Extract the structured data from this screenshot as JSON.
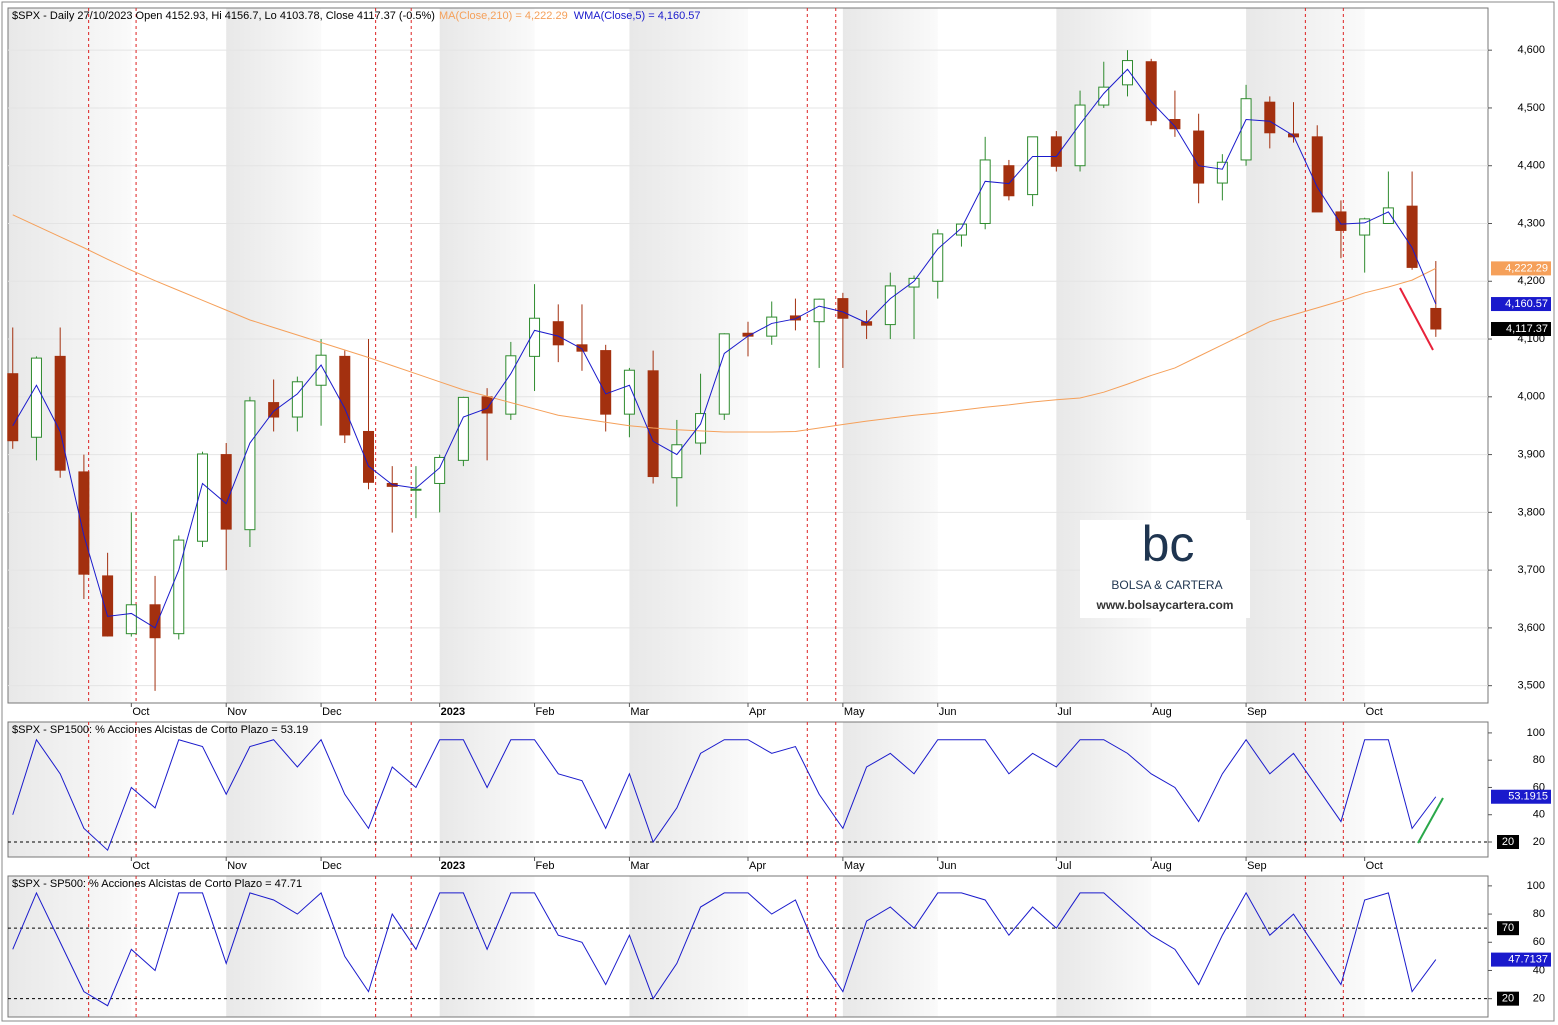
{
  "chart_data": [
    {
      "type": "candlestick",
      "title": "$SPX - Daily 27/10/2023 Open 4152.93, Hi 4156.7, Lo 4103.78, Close 4117.37 (-0.5%)",
      "open": [
        4040,
        3930,
        4070,
        3870,
        3690,
        3590,
        3640,
        3590,
        3750,
        3900,
        3770,
        3990,
        3965,
        4020,
        4070,
        3940,
        3850,
        3840,
        3850,
        3890,
        4000,
        3970,
        4070,
        4130,
        4090,
        4080,
        3970,
        4045,
        3860,
        3920,
        3970,
        4110,
        4105,
        4140,
        4130,
        4170,
        4130,
        4125,
        4190,
        4200,
        4280,
        4300,
        4400,
        4350,
        4450,
        4400,
        4505,
        4540,
        4580,
        4480,
        4460,
        4370,
        4410,
        4510,
        4455,
        4450,
        4320,
        4280,
        4300,
        4330,
        4152.93
      ],
      "high": [
        4120,
        4070,
        4120,
        3900,
        3730,
        3800,
        3690,
        3760,
        3905,
        3920,
        4000,
        4030,
        4035,
        4100,
        4080,
        4100,
        3880,
        3880,
        3900,
        4000,
        4015,
        4095,
        4195,
        4160,
        4160,
        4090,
        4050,
        4080,
        3960,
        4040,
        4110,
        4130,
        4165,
        4170,
        4170,
        4180,
        4150,
        4215,
        4210,
        4290,
        4300,
        4450,
        4410,
        4450,
        4460,
        4530,
        4580,
        4600,
        4585,
        4530,
        4490,
        4420,
        4540,
        4520,
        4510,
        4470,
        4340,
        4310,
        4390,
        4390,
        4235
      ],
      "low": [
        3910,
        3890,
        3860,
        3650,
        3585,
        3585,
        3491,
        3580,
        3740,
        3700,
        3740,
        3940,
        3940,
        3950,
        3920,
        3840,
        3765,
        3790,
        3800,
        3880,
        3890,
        3960,
        4010,
        4060,
        4045,
        3940,
        3930,
        3850,
        3810,
        3900,
        3960,
        4070,
        4090,
        4115,
        4050,
        4050,
        4100,
        4100,
        4100,
        4170,
        4260,
        4290,
        4340,
        4330,
        4390,
        4390,
        4500,
        4520,
        4470,
        4450,
        4335,
        4340,
        4400,
        4430,
        4440,
        4320,
        4240,
        4215,
        4300,
        4220,
        4103.78
      ],
      "close": [
        3924,
        4067,
        3873,
        3693,
        3586,
        3640,
        3583,
        3752,
        3901,
        3771,
        3993,
        3965,
        4026,
        4072,
        3934,
        3852,
        3845,
        3840,
        3895,
        3999,
        3972,
        4071,
        4136,
        4090,
        4079,
        3970,
        4046,
        3862,
        3917,
        3971,
        4109,
        4105,
        4138,
        4133,
        4169,
        4136,
        4124,
        4192,
        4205,
        4282,
        4299,
        4410,
        4348,
        4450,
        4399,
        4505,
        4536,
        4582,
        4478,
        4464,
        4370,
        4406,
        4516,
        4457,
        4450,
        4320,
        4288,
        4308,
        4327,
        4224,
        4117.37
      ],
      "last_close_label": "4,117.37",
      "up_color": "#2e8b2e",
      "down_color": "#a3300f",
      "series": [
        {
          "name": "MA(Close,210) = 4,222.29",
          "color": "#f5a05a",
          "last_label": "4,222.29",
          "values": [
            4315,
            4296,
            4277,
            4258,
            4238,
            4219,
            4201,
            4184,
            4167,
            4150,
            4133,
            4120,
            4107,
            4094,
            4081,
            4068,
            4054,
            4040,
            4026,
            4012,
            4001,
            3990,
            3979,
            3968,
            3962,
            3956,
            3950,
            3946,
            3943,
            3941,
            3939,
            3939,
            3939,
            3940,
            3946,
            3952,
            3958,
            3963,
            3968,
            3972,
            3977,
            3982,
            3986,
            3991,
            3995,
            3998,
            4008,
            4022,
            4037,
            4050,
            4070,
            4090,
            4110,
            4130,
            4142,
            4154,
            4166,
            4180,
            4190,
            4202,
            4222.29
          ]
        },
        {
          "name": "WMA(Close,5) = 4,160.57",
          "color": "#1a1acc",
          "last_label": "4,160.57",
          "values": [
            3950,
            4020,
            3940,
            3760,
            3620,
            3625,
            3600,
            3700,
            3850,
            3815,
            3920,
            3975,
            4005,
            4055,
            3980,
            3880,
            3848,
            3842,
            3877,
            3965,
            3980,
            4040,
            4115,
            4105,
            4083,
            4005,
            4020,
            3923,
            3900,
            3953,
            4075,
            4105,
            4127,
            4135,
            4157,
            4147,
            4128,
            4170,
            4200,
            4256,
            4292,
            4373,
            4369,
            4416,
            4416,
            4472,
            4525,
            4567,
            4511,
            4468,
            4400,
            4394,
            4480,
            4477,
            4452,
            4363,
            4299,
            4301,
            4320,
            4258,
            4160.57
          ]
        }
      ],
      "xlim": [
        -0.2,
        62.2
      ],
      "xticks": [
        {
          "value": 5,
          "label": "Oct"
        },
        {
          "value": 9,
          "label": "Nov"
        },
        {
          "value": 13,
          "label": "Dec"
        },
        {
          "value": 18,
          "label": "2023"
        },
        {
          "value": 22,
          "label": "Feb"
        },
        {
          "value": 26,
          "label": "Mar"
        },
        {
          "value": 31,
          "label": "Apr"
        },
        {
          "value": 35,
          "label": "May"
        },
        {
          "value": 39,
          "label": "Jun"
        },
        {
          "value": 44,
          "label": "Jul"
        },
        {
          "value": 48,
          "label": "Aug"
        },
        {
          "value": 52,
          "label": "Sep"
        },
        {
          "value": 57,
          "label": "Oct"
        }
      ],
      "ylim": [
        3470,
        4673
      ],
      "yticks": [
        {
          "value": 3500,
          "label": "3,500"
        },
        {
          "value": 3600,
          "label": "3,600"
        },
        {
          "value": 3700,
          "label": "3,700"
        },
        {
          "value": 3800,
          "label": "3,800"
        },
        {
          "value": 3900,
          "label": "3,900"
        },
        {
          "value": 4000,
          "label": "4,000"
        },
        {
          "value": 4100,
          "label": "4,100"
        },
        {
          "value": 4200,
          "label": "4,200"
        },
        {
          "value": 4300,
          "label": "4,300"
        },
        {
          "value": 4400,
          "label": "4,400"
        },
        {
          "value": 4500,
          "label": "4,500"
        },
        {
          "value": 4600,
          "label": "4,600"
        }
      ],
      "grid": true,
      "marker_lines": [
        3.2,
        5.2,
        15.3,
        16.8,
        33.5,
        34.7,
        54.5,
        56.1
      ],
      "marker_color": "#dd2222",
      "watermark": {
        "brand": "bc",
        "name": "BOLSA & CARTERA",
        "url": "www.bolsaycartera.com"
      }
    },
    {
      "type": "line",
      "title": "$SPX - SP1500: % Acciones Alcistas de Corto Plazo = 53.19",
      "series": [
        {
          "color": "#1a1acc",
          "values": [
            40,
            95,
            70,
            30,
            14,
            60,
            45,
            95,
            90,
            55,
            90,
            95,
            75,
            95,
            55,
            30,
            75,
            60,
            95,
            95,
            60,
            95,
            95,
            70,
            65,
            30,
            70,
            20,
            45,
            85,
            95,
            95,
            85,
            90,
            55,
            30,
            75,
            85,
            70,
            95,
            95,
            95,
            70,
            85,
            75,
            95,
            95,
            85,
            70,
            60,
            35,
            70,
            95,
            70,
            85,
            60,
            35,
            95,
            95,
            30,
            53.1915
          ]
        }
      ],
      "xlim": [
        -0.2,
        62.2
      ],
      "xticks": [
        {
          "value": 5,
          "label": "Oct"
        },
        {
          "value": 9,
          "label": "Nov"
        },
        {
          "value": 13,
          "label": "Dec"
        },
        {
          "value": 18,
          "label": "2023"
        },
        {
          "value": 22,
          "label": "Feb"
        },
        {
          "value": 26,
          "label": "Mar"
        },
        {
          "value": 31,
          "label": "Apr"
        },
        {
          "value": 35,
          "label": "May"
        },
        {
          "value": 39,
          "label": "Jun"
        },
        {
          "value": 44,
          "label": "Jul"
        },
        {
          "value": 48,
          "label": "Aug"
        },
        {
          "value": 52,
          "label": "Sep"
        },
        {
          "value": 57,
          "label": "Oct"
        }
      ],
      "ylim": [
        9,
        108
      ],
      "yticks": [
        20,
        40,
        60,
        80,
        100
      ],
      "ref_lines": [
        20
      ]
    },
    {
      "type": "line",
      "title": "$SPX - SP500: % Acciones Alcistas de Corto Plazo = 47.71",
      "series": [
        {
          "color": "#1a1acc",
          "values": [
            55,
            95,
            60,
            25,
            15,
            55,
            40,
            95,
            95,
            45,
            95,
            90,
            80,
            95,
            50,
            25,
            80,
            55,
            95,
            95,
            55,
            95,
            95,
            65,
            60,
            30,
            65,
            20,
            45,
            85,
            95,
            95,
            80,
            90,
            50,
            25,
            75,
            85,
            70,
            95,
            95,
            90,
            65,
            85,
            70,
            95,
            95,
            80,
            65,
            55,
            30,
            65,
            95,
            65,
            80,
            55,
            30,
            90,
            95,
            25,
            47.7137
          ]
        }
      ],
      "xlim": [
        -0.2,
        62.2
      ],
      "ylim": [
        7,
        107
      ],
      "yticks": [
        20,
        40,
        60,
        80,
        100
      ],
      "ref_lines": [
        70,
        20
      ]
    }
  ]
}
